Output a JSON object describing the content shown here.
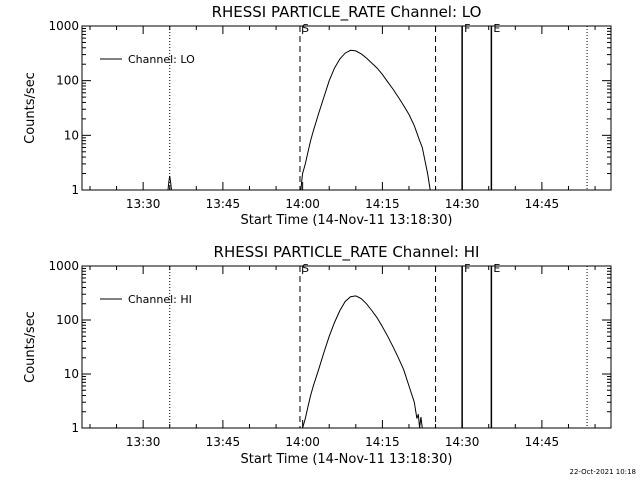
{
  "chart_data": [
    {
      "type": "line",
      "title": "RHESSI PARTICLE_RATE Channel: LO",
      "xlabel": "Start Time (14-Nov-11 13:18:30)",
      "ylabel": "Counts/sec",
      "yscale": "log",
      "xlim": [
        "13:18:30",
        "14:58:00"
      ],
      "ylim": [
        1,
        1000
      ],
      "x_ticks": [
        "13:30",
        "13:45",
        "14:00",
        "14:15",
        "14:30",
        "14:45"
      ],
      "y_ticks": [
        "1",
        "10",
        "100",
        "1000"
      ],
      "legend": {
        "placement": "top-left",
        "entries": [
          "Channel: LO"
        ]
      },
      "markers": [
        {
          "label": "",
          "time": "13:18:30",
          "style": "dotted"
        },
        {
          "label": "",
          "time": "13:35:00",
          "style": "dotted"
        },
        {
          "label": "S",
          "time": "13:59:30",
          "style": "dashed"
        },
        {
          "label": "",
          "time": "14:25:00",
          "style": "dashed"
        },
        {
          "label": "F",
          "time": "14:30:00",
          "style": "solid"
        },
        {
          "label": "E",
          "time": "14:35:30",
          "style": "solid"
        },
        {
          "label": "",
          "time": "14:53:30",
          "style": "dotted"
        }
      ],
      "series": [
        {
          "name": "Channel: LO",
          "x": [
            "13:34:40",
            "13:34:50",
            "13:35:00",
            "13:35:10",
            "13:35:20",
            "13:59:40",
            "13:59:50",
            "14:00:00",
            "14:00:30",
            "14:01:00",
            "14:01:30",
            "14:02:00",
            "14:03:00",
            "14:04:00",
            "14:05:00",
            "14:06:00",
            "14:07:00",
            "14:08:00",
            "14:09:00",
            "14:10:00",
            "14:11:00",
            "14:12:00",
            "14:13:00",
            "14:14:00",
            "14:15:00",
            "14:16:00",
            "14:17:00",
            "14:18:00",
            "14:19:00",
            "14:20:00",
            "14:21:00",
            "14:22:00",
            "14:22:30",
            "14:23:00",
            "14:23:30",
            "14:24:00"
          ],
          "y": [
            1,
            1.4,
            1.8,
            1.4,
            1,
            1,
            1.5,
            2,
            3,
            5,
            8,
            12,
            25,
            50,
            100,
            170,
            250,
            320,
            360,
            350,
            310,
            260,
            210,
            170,
            130,
            95,
            70,
            50,
            35,
            24,
            15,
            8,
            6,
            3.5,
            2,
            1
          ]
        }
      ]
    },
    {
      "type": "line",
      "title": "RHESSI PARTICLE_RATE Channel: HI",
      "xlabel": "Start Time (14-Nov-11 13:18:30)",
      "ylabel": "Counts/sec",
      "yscale": "log",
      "xlim": [
        "13:18:30",
        "14:58:00"
      ],
      "ylim": [
        1,
        1000
      ],
      "x_ticks": [
        "13:30",
        "13:45",
        "14:00",
        "14:15",
        "14:30",
        "14:45"
      ],
      "y_ticks": [
        "1",
        "10",
        "100",
        "1000"
      ],
      "legend": {
        "placement": "top-left",
        "entries": [
          "Channel: HI"
        ]
      },
      "markers": [
        {
          "label": "",
          "time": "13:18:30",
          "style": "dotted"
        },
        {
          "label": "",
          "time": "13:35:00",
          "style": "dotted"
        },
        {
          "label": "S",
          "time": "13:59:30",
          "style": "dashed"
        },
        {
          "label": "",
          "time": "14:25:00",
          "style": "dashed"
        },
        {
          "label": "F",
          "time": "14:30:00",
          "style": "solid"
        },
        {
          "label": "E",
          "time": "14:35:30",
          "style": "solid"
        },
        {
          "label": "",
          "time": "14:53:30",
          "style": "dotted"
        }
      ],
      "series": [
        {
          "name": "Channel: HI",
          "x": [
            "14:00:00",
            "14:00:30",
            "14:01:00",
            "14:01:30",
            "14:02:00",
            "14:03:00",
            "14:04:00",
            "14:05:00",
            "14:06:00",
            "14:07:00",
            "14:08:00",
            "14:09:00",
            "14:10:00",
            "14:11:00",
            "14:12:00",
            "14:13:00",
            "14:14:00",
            "14:15:00",
            "14:16:00",
            "14:17:00",
            "14:18:00",
            "14:19:00",
            "14:20:00",
            "14:21:00",
            "14:21:30",
            "14:21:45",
            "14:22:00",
            "14:22:15",
            "14:22:30"
          ],
          "y": [
            1,
            1.5,
            2.5,
            4,
            6,
            12,
            25,
            50,
            90,
            150,
            220,
            270,
            280,
            250,
            200,
            150,
            110,
            75,
            50,
            32,
            20,
            12,
            6,
            3,
            1.5,
            1.8,
            1,
            1.6,
            1
          ]
        }
      ]
    }
  ],
  "footer": {
    "timestamp": "22-Oct-2021 10:18"
  }
}
